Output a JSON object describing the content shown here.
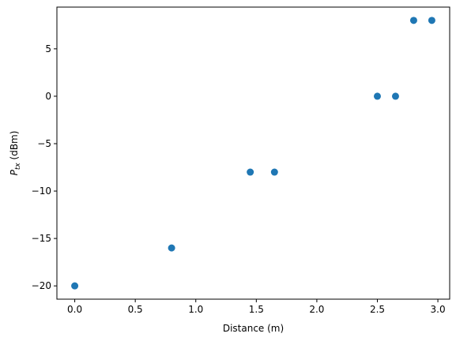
{
  "chart_data": {
    "type": "scatter",
    "title": "",
    "xlabel": "Distance (m)",
    "ylabel": {
      "main": "P",
      "sub": "tx",
      "unit": " (dBm)"
    },
    "xlim": [
      -0.1475,
      3.0975
    ],
    "ylim": [
      -21.4,
      9.4
    ],
    "xticks": [
      0.0,
      0.5,
      1.0,
      1.5,
      2.0,
      2.5,
      3.0
    ],
    "xtick_labels": [
      "0.0",
      "0.5",
      "1.0",
      "1.5",
      "2.0",
      "2.5",
      "3.0"
    ],
    "yticks": [
      -20,
      -15,
      -10,
      -5,
      0,
      5
    ],
    "ytick_labels": [
      "−20",
      "−15",
      "−10",
      "−5",
      "0",
      "5"
    ],
    "grid": false,
    "marker_color": "#1f77b4",
    "x": [
      0.0,
      0.8,
      1.45,
      1.65,
      2.5,
      2.65,
      2.8,
      2.95
    ],
    "y": [
      -20,
      -16,
      -8,
      -8,
      0,
      0,
      8,
      8
    ]
  }
}
